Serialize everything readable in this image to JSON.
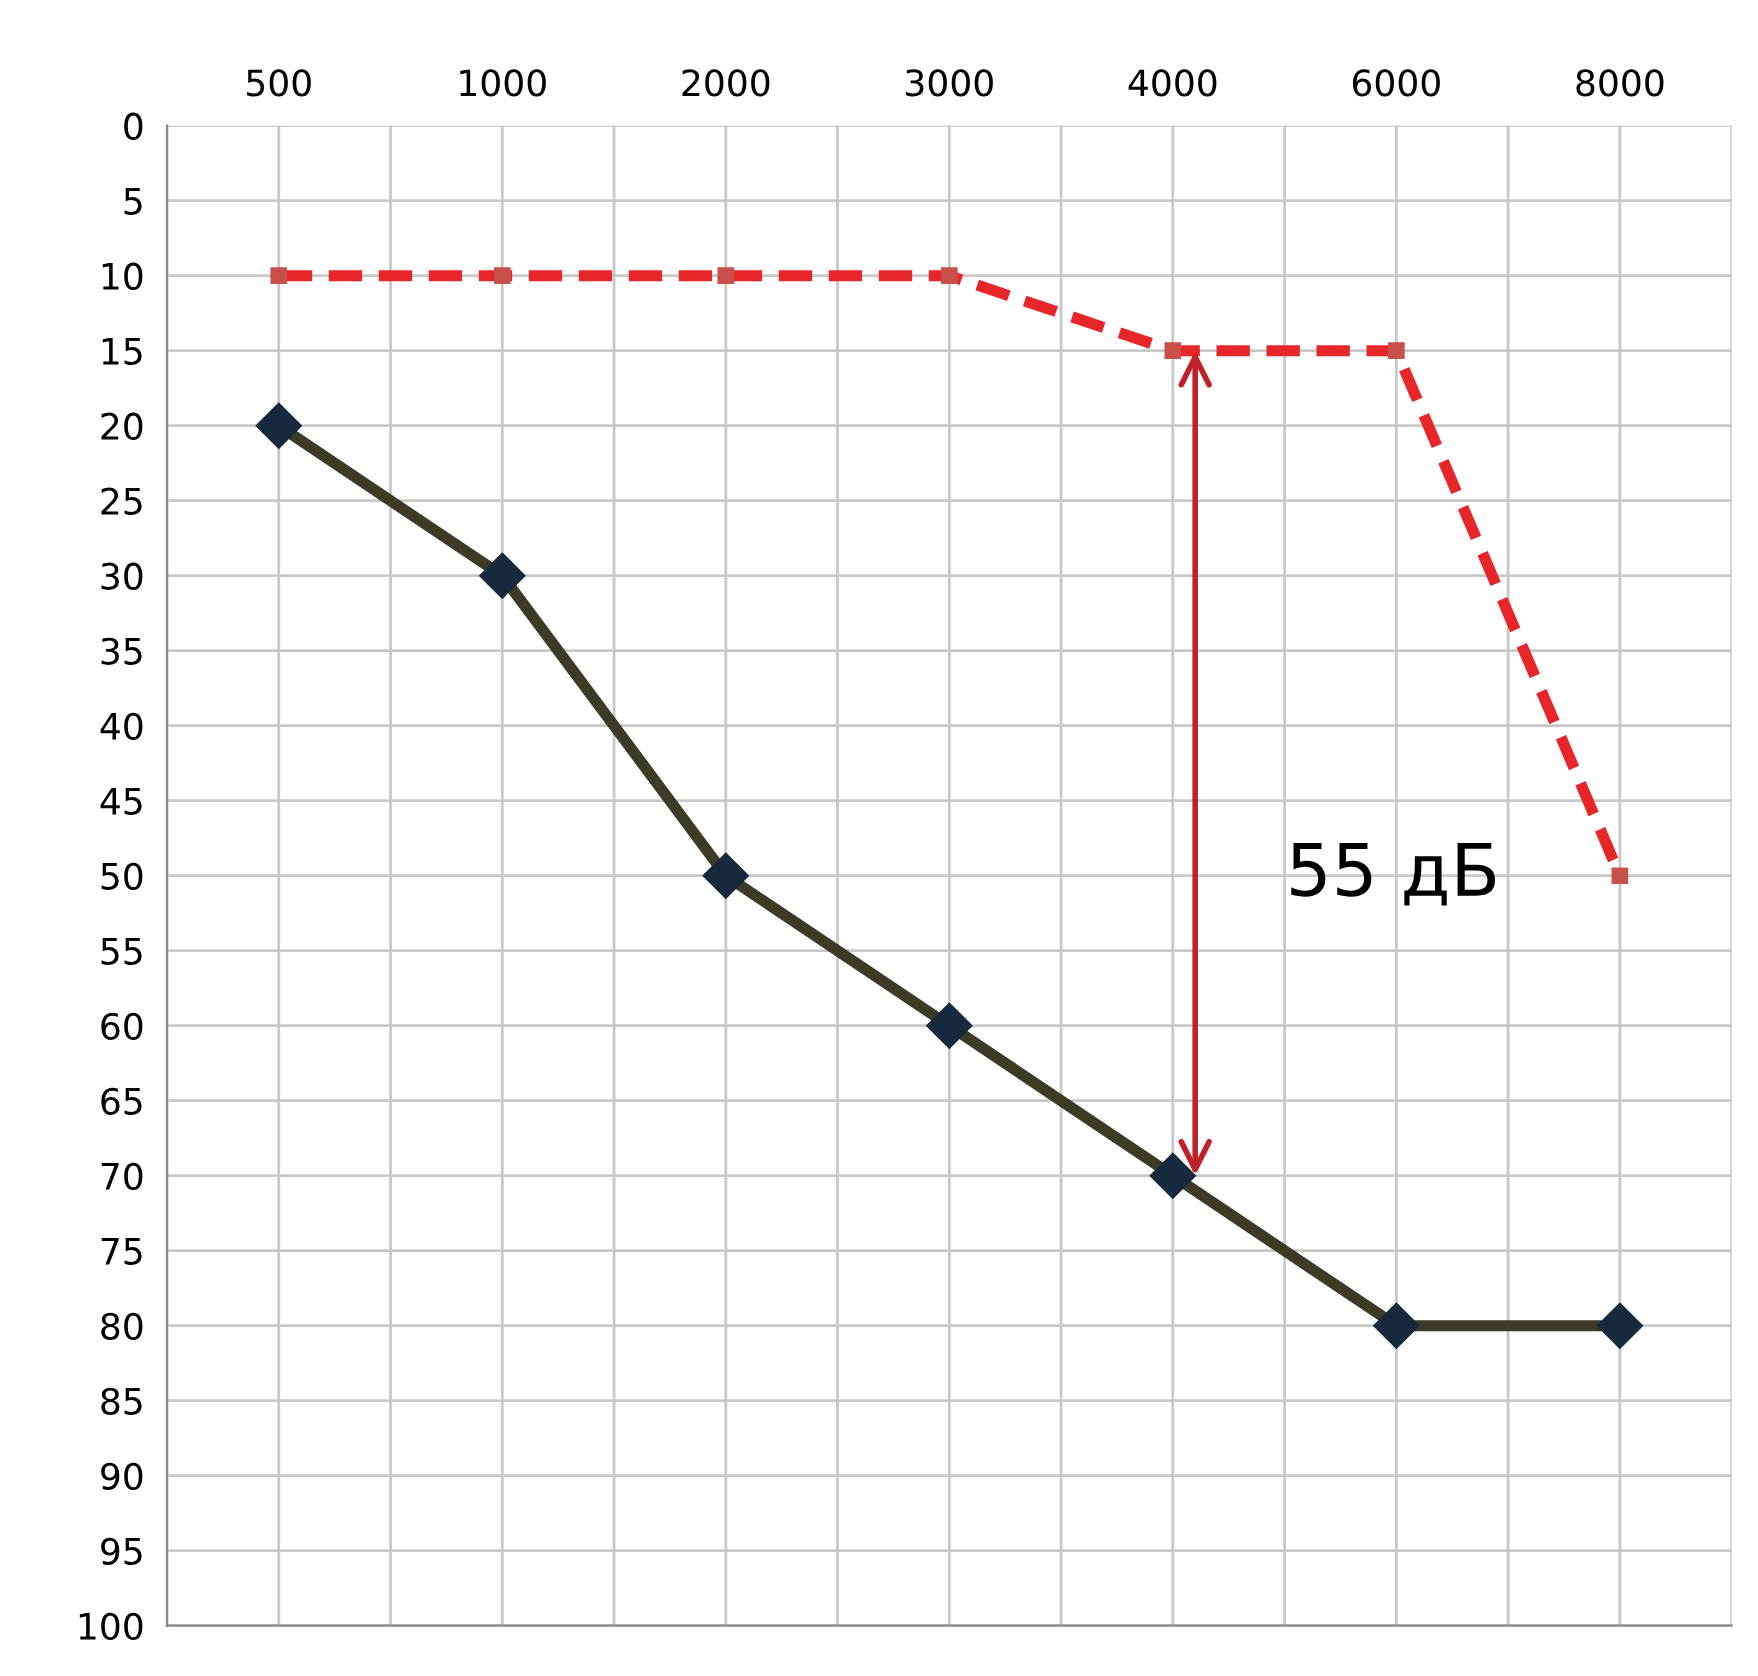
{
  "chart_data": {
    "type": "line",
    "categories": [
      "500",
      "1000",
      "2000",
      "3000",
      "4000",
      "6000",
      "8000"
    ],
    "series": [
      {
        "color": "#e8262a",
        "values": [
          10,
          10,
          10,
          10,
          15,
          15,
          50
        ],
        "line_style": "dashed",
        "marker": "square"
      },
      {
        "color": "#3d3a26",
        "values": [
          20,
          30,
          50,
          60,
          70,
          80,
          80
        ],
        "line_style": "solid",
        "marker": "diamond"
      }
    ],
    "ylim": [
      100,
      0
    ],
    "yticks": [
      0,
      5,
      10,
      15,
      20,
      25,
      30,
      35,
      40,
      45,
      50,
      55,
      60,
      65,
      70,
      75,
      80,
      85,
      90,
      95,
      100
    ],
    "grid": true,
    "legend": false,
    "annotations": [
      "55 дБ"
    ]
  }
}
